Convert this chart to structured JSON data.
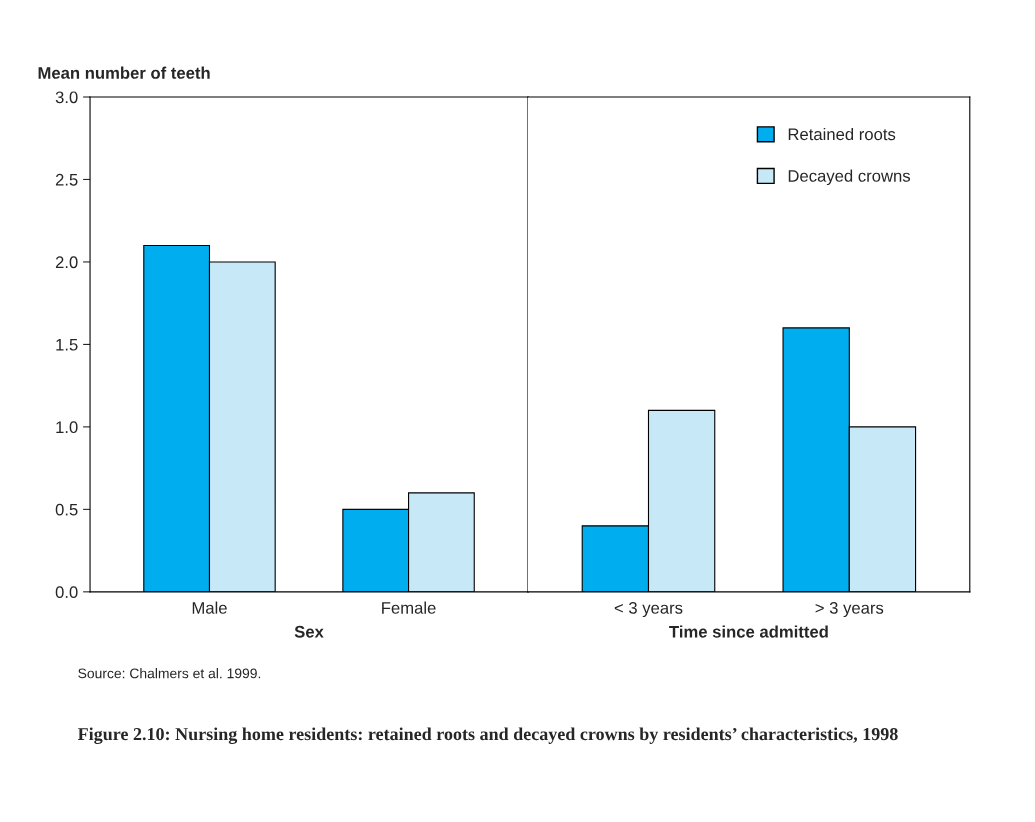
{
  "chart_data": [
    {
      "type": "bar",
      "title": "Figure 2.10: Nursing home residents: retained roots and decayed crowns by residents’ characteristics, 1998",
      "ylabel": "Mean number of teeth",
      "xlabel": "Sex",
      "annotations": [
        "Source: Chalmers et al. 1999."
      ],
      "categories": [
        "Male",
        "Female"
      ],
      "series": [
        {
          "color": "#00aeef",
          "values": [
            2.1,
            0.5
          ]
        },
        {
          "color": "#c6e8f7",
          "values": [
            2.0,
            0.6
          ]
        }
      ],
      "ylim": [
        0,
        3
      ],
      "yticks": [
        {
          "value": 0,
          "label": "0.0"
        },
        {
          "value": 0.5,
          "label": "0.5"
        },
        {
          "value": 1,
          "label": "1.0"
        },
        {
          "value": 1.5,
          "label": "1.5"
        },
        {
          "value": 2,
          "label": "2.0"
        },
        {
          "value": 2.5,
          "label": "2.5"
        },
        {
          "value": 3,
          "label": "3.0"
        }
      ],
      "legend": false
    },
    {
      "type": "bar",
      "xlabel": "Time since admitted",
      "categories": [
        "< 3 years",
        "> 3 years"
      ],
      "series": [
        {
          "name": "Retained roots",
          "color": "#00aeef",
          "values": [
            0.4,
            1.6
          ]
        },
        {
          "name": "Decayed crowns",
          "color": "#c6e8f7",
          "values": [
            1.1,
            1.0
          ]
        }
      ],
      "ylim": [
        0,
        3
      ],
      "tick_labels": "x",
      "legend": "top right"
    }
  ]
}
